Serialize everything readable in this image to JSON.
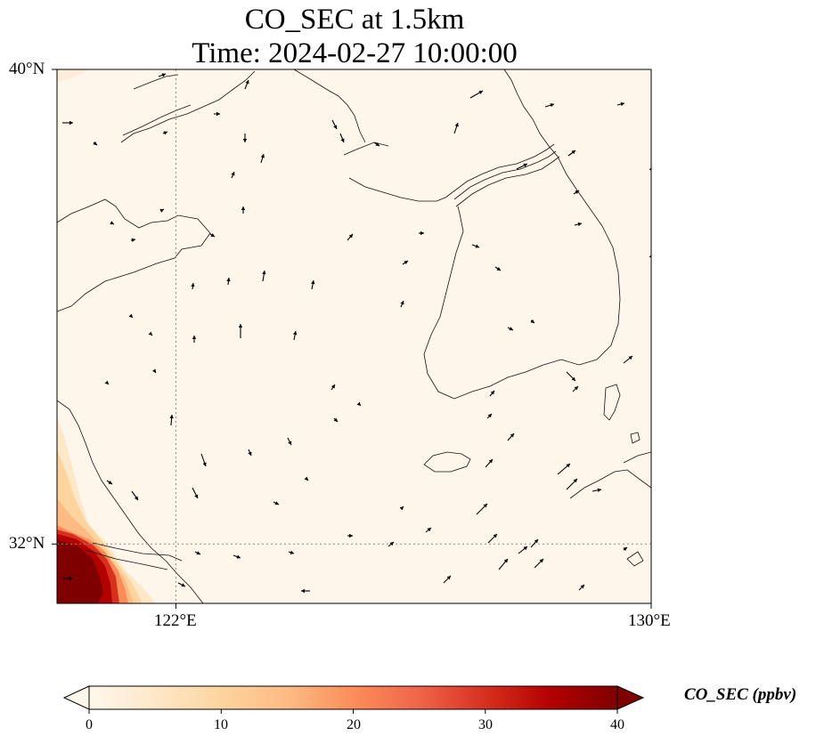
{
  "title": {
    "line1": "CO_SEC at 1.5km",
    "line2": "Time: 2024-02-27 10:00:00"
  },
  "axes": {
    "lon_ticks": [
      {
        "value": 122,
        "label": "122°E"
      },
      {
        "value": 130,
        "label": "130°E"
      }
    ],
    "lat_ticks": [
      {
        "value": 40,
        "label": "40°N"
      },
      {
        "value": 32,
        "label": "32°N"
      }
    ],
    "lon_range": [
      120,
      130
    ],
    "lat_range": [
      31,
      40
    ],
    "gridlines": "dotted at 122°E and 32°N"
  },
  "colorbar": {
    "label": "CO_SEC (ppbv)",
    "colormap": "OrRd",
    "range": [
      0,
      40
    ],
    "extend": "both",
    "ticks": [
      {
        "value": 0,
        "label": "0"
      },
      {
        "value": 10,
        "label": "10"
      },
      {
        "value": 20,
        "label": "20"
      },
      {
        "value": 30,
        "label": "30"
      },
      {
        "value": 40,
        "label": "40"
      }
    ],
    "stops": [
      "#fff7ec",
      "#fee8c8",
      "#fdd49e",
      "#fdbb84",
      "#fc8d59",
      "#ef6548",
      "#d7301f",
      "#b30000",
      "#7f0000"
    ]
  },
  "map_features": [
    "coastlines",
    "wind-vectors",
    "high CO_SEC near Yangtze River Delta (southwest corner)"
  ]
}
